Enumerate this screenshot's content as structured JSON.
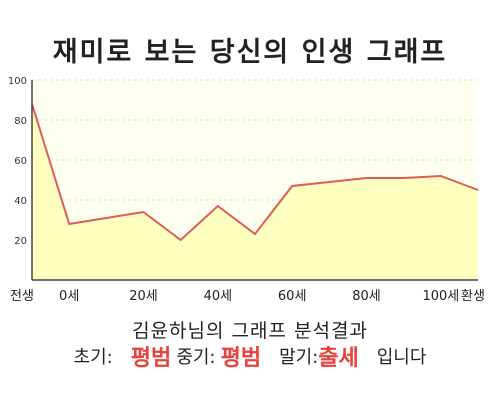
{
  "title": "재미로 보는 당신의 인생 그래프",
  "result_heading": "김윤하님의 그래프 분석결과",
  "summary": {
    "early_label": "초기:",
    "early_value": "평범",
    "middle_label": "중기:",
    "middle_value": "평범",
    "late_label": "말기:",
    "late_value": "출세",
    "suffix": "입니다"
  },
  "colors": {
    "line": "#e05a5a",
    "fill": "#ffffc0",
    "plot_background": "#fffff0",
    "highlight_text": "#e8403a"
  },
  "chart_data": {
    "type": "area",
    "title": "재미로 보는 당신의 인생 그래프",
    "x_categories": [
      "전생",
      "0세",
      "20세",
      "40세",
      "60세",
      "80세",
      "100세",
      "환생"
    ],
    "x": [
      "전생",
      "0세",
      "10세",
      "20세",
      "30세",
      "40세",
      "50세",
      "60세",
      "70세",
      "80세",
      "90세",
      "100세",
      "환생"
    ],
    "y": [
      88,
      28,
      31,
      34,
      20,
      37,
      23,
      47,
      49,
      51,
      51,
      52,
      45
    ],
    "ylim": [
      0,
      100
    ],
    "y_ticks": [
      20,
      40,
      60,
      80,
      100
    ],
    "grid": true,
    "legend": "none"
  }
}
